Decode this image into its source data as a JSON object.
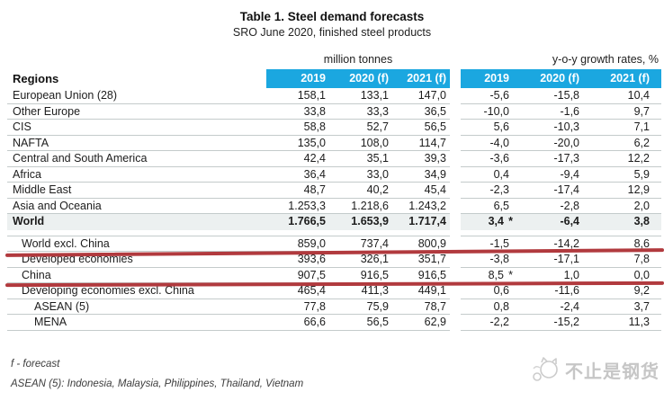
{
  "title": "Table 1. Steel demand forecasts",
  "subtitle": "SRO June 2020, finished steel products",
  "table": {
    "row_header_label": "Regions",
    "group1_label": "million tonnes",
    "group2_label": "y-o-y growth rates, %",
    "columns": [
      "2019",
      "2020 (f)",
      "2021 (f)"
    ],
    "rows": [
      {
        "region": "European Union (28)",
        "indent": 0,
        "tonnes": [
          "158,1",
          "133,1",
          "147,0"
        ],
        "growth": [
          "-5,6",
          "-15,8",
          "10,4"
        ]
      },
      {
        "region": "Other Europe",
        "indent": 0,
        "tonnes": [
          "33,8",
          "33,3",
          "36,5"
        ],
        "growth": [
          "-10,0",
          "-1,6",
          "9,7"
        ]
      },
      {
        "region": "CIS",
        "indent": 0,
        "tonnes": [
          "58,8",
          "52,7",
          "56,5"
        ],
        "growth": [
          "5,6",
          "-10,3",
          "7,1"
        ]
      },
      {
        "region": "NAFTA",
        "indent": 0,
        "tonnes": [
          "135,0",
          "108,0",
          "114,7"
        ],
        "growth": [
          "-4,0",
          "-20,0",
          "6,2"
        ]
      },
      {
        "region": "Central and South America",
        "indent": 0,
        "tonnes": [
          "42,4",
          "35,1",
          "39,3"
        ],
        "growth": [
          "-3,6",
          "-17,3",
          "12,2"
        ]
      },
      {
        "region": "Africa",
        "indent": 0,
        "tonnes": [
          "36,4",
          "33,0",
          "34,9"
        ],
        "growth": [
          "0,4",
          "-9,4",
          "5,9"
        ]
      },
      {
        "region": "Middle East",
        "indent": 0,
        "tonnes": [
          "48,7",
          "40,2",
          "45,4"
        ],
        "growth": [
          "-2,3",
          "-17,4",
          "12,9"
        ]
      },
      {
        "region": "Asia and Oceania",
        "indent": 0,
        "tonnes": [
          "1.253,3",
          "1.218,6",
          "1.243,2"
        ],
        "growth": [
          "6,5",
          "-2,8",
          "2,0"
        ]
      },
      {
        "region": "World",
        "indent": 0,
        "bold": true,
        "highlight": true,
        "gap_after": true,
        "tonnes": [
          "1.766,5",
          "1.653,9",
          "1.717,4"
        ],
        "growth": [
          "3,4",
          "-6,4",
          "3,8"
        ],
        "growth_star": [
          true,
          false,
          false
        ]
      },
      {
        "region": "World excl. China",
        "indent": 1,
        "red_underline": true,
        "tonnes": [
          "859,0",
          "737,4",
          "800,9"
        ],
        "growth": [
          "-1,5",
          "-14,2",
          "8,6"
        ]
      },
      {
        "region": "Developed economies",
        "indent": 1,
        "tonnes": [
          "393,6",
          "326,1",
          "351,7"
        ],
        "growth": [
          "-3,8",
          "-17,1",
          "7,8"
        ]
      },
      {
        "region": "China",
        "indent": 1,
        "red_underline": true,
        "tonnes": [
          "907,5",
          "916,5",
          "916,5"
        ],
        "growth": [
          "8,5",
          "1,0",
          "0,0"
        ],
        "growth_star": [
          true,
          false,
          false
        ]
      },
      {
        "region": "Developing economies excl. China",
        "indent": 1,
        "tonnes": [
          "465,4",
          "411,3",
          "449,1"
        ],
        "growth": [
          "0,6",
          "-11,6",
          "9,2"
        ]
      },
      {
        "region": "ASEAN (5)",
        "indent": 2,
        "tonnes": [
          "77,8",
          "75,9",
          "78,7"
        ],
        "growth": [
          "0,8",
          "-2,4",
          "3,7"
        ]
      },
      {
        "region": "MENA",
        "indent": 2,
        "tonnes": [
          "66,6",
          "56,5",
          "62,9"
        ],
        "growth": [
          "-2,2",
          "-15,2",
          "11,3"
        ]
      }
    ]
  },
  "footnotes": {
    "forecast_note": "f - forecast",
    "asean_note": "ASEAN (5): Indonesia, Malaysia, Philippines, Thailand, Vietnam"
  },
  "watermark": {
    "icon": "cat-logo-icon",
    "text": "不止是钢货"
  },
  "annotations": {
    "red_underline_rows": [
      "World excl. China",
      "China"
    ],
    "red_color": "#b13a3e"
  },
  "colors": {
    "header_blue": "#1ba7e0",
    "world_row_bg": "#ecf0f0",
    "separator": "#c4cbcb"
  },
  "chart_data": {
    "type": "table",
    "title": "Table 1. Steel demand forecasts",
    "subtitle": "SRO June 2020, finished steel products",
    "column_groups": [
      "million tonnes",
      "y-o-y growth rates, %"
    ],
    "columns": [
      "Region",
      "2019 Mt",
      "2020 (f) Mt",
      "2021 (f) Mt",
      "2019 %",
      "2020 (f) %",
      "2021 (f) %"
    ],
    "rows": [
      [
        "European Union (28)",
        158.1,
        133.1,
        147.0,
        -5.6,
        -15.8,
        10.4
      ],
      [
        "Other Europe",
        33.8,
        33.3,
        36.5,
        -10.0,
        -1.6,
        9.7
      ],
      [
        "CIS",
        58.8,
        52.7,
        56.5,
        5.6,
        -10.3,
        7.1
      ],
      [
        "NAFTA",
        135.0,
        108.0,
        114.7,
        -4.0,
        -20.0,
        6.2
      ],
      [
        "Central and South America",
        42.4,
        35.1,
        39.3,
        -3.6,
        -17.3,
        12.2
      ],
      [
        "Africa",
        36.4,
        33.0,
        34.9,
        0.4,
        -9.4,
        5.9
      ],
      [
        "Middle East",
        48.7,
        40.2,
        45.4,
        -2.3,
        -17.4,
        12.9
      ],
      [
        "Asia and Oceania",
        1253.3,
        1218.6,
        1243.2,
        6.5,
        -2.8,
        2.0
      ],
      [
        "World",
        1766.5,
        1653.9,
        1717.4,
        3.4,
        -6.4,
        3.8
      ],
      [
        "World excl. China",
        859.0,
        737.4,
        800.9,
        -1.5,
        -14.2,
        8.6
      ],
      [
        "Developed economies",
        393.6,
        326.1,
        351.7,
        -3.8,
        -17.1,
        7.8
      ],
      [
        "China",
        907.5,
        916.5,
        916.5,
        8.5,
        1.0,
        0.0
      ],
      [
        "Developing economies excl. China",
        465.4,
        411.3,
        449.1,
        0.6,
        -11.6,
        9.2
      ],
      [
        "ASEAN (5)",
        77.8,
        75.9,
        78.7,
        0.8,
        -2.4,
        3.7
      ],
      [
        "MENA",
        66.6,
        56.5,
        62.9,
        -2.2,
        -15.2,
        11.3
      ]
    ],
    "asterisk_on_2019_growth": [
      "World",
      "China"
    ]
  }
}
